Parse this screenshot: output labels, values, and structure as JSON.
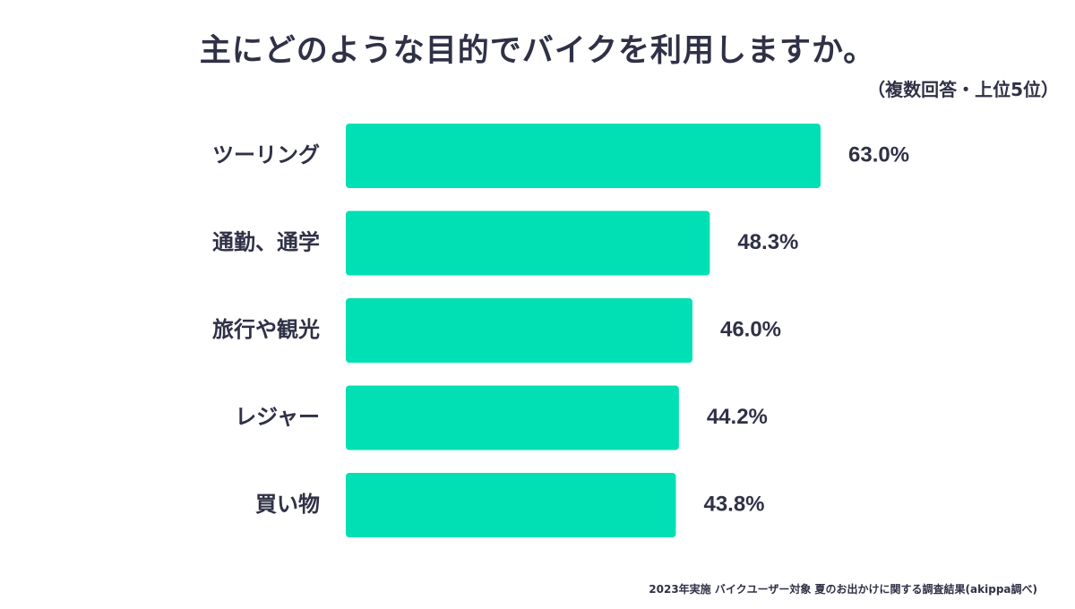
{
  "chart_data": {
    "type": "bar",
    "orientation": "horizontal",
    "title": "主にどのような目的でバイクを利用しますか。",
    "subtitle": "（複数回答・上位5位）",
    "categories": [
      "ツーリング",
      "通勤、通学",
      "旅行や観光",
      "レジャー",
      "買い物"
    ],
    "values": [
      63.0,
      48.3,
      46.0,
      44.2,
      43.8
    ],
    "value_labels": [
      "63.0%",
      "48.3%",
      "46.0%",
      "44.2%",
      "43.8%"
    ],
    "unit": "%",
    "bar_color": "#00e0b4",
    "xlim": [
      0,
      63.0
    ],
    "grid": false,
    "legend": "none"
  },
  "footnote": "2023年実施 バイクユーザー対象 夏のお出かけに関する調査結果(akippa調べ)"
}
